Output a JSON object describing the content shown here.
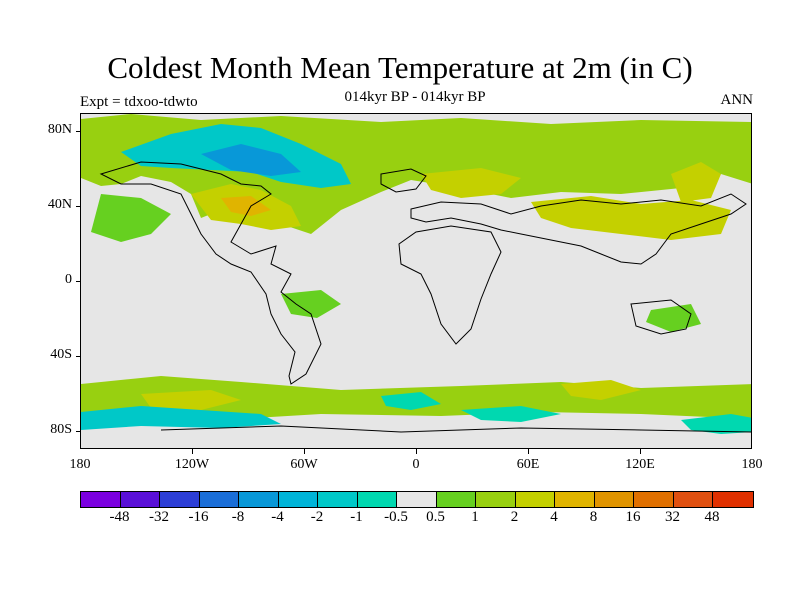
{
  "title": "Coldest Month Mean Temperature at 2m (in C)",
  "subtitle": "014kyr BP - 014kyr BP",
  "left_label": "Expt = tdxoo-tdwto",
  "right_label": "ANN",
  "y_ticks": [
    "80N",
    "40N",
    "0",
    "40S",
    "80S"
  ],
  "x_ticks": [
    "180",
    "120W",
    "60W",
    "0",
    "60E",
    "120E",
    "180"
  ],
  "colorbar": {
    "colors": [
      "#7b00e0",
      "#5a10d8",
      "#2c3ed6",
      "#1a6ed8",
      "#0898d8",
      "#00b4d8",
      "#00c8c8",
      "#00d8b0",
      "#e6e6e6",
      "#66d020",
      "#98d010",
      "#c4d000",
      "#e0b400",
      "#e09400",
      "#e07000",
      "#e05010",
      "#e03000"
    ],
    "labels": [
      "-48",
      "-32",
      "-16",
      "-8",
      "-4",
      "-2",
      "-1",
      "-0.5",
      "0.5",
      "1",
      "2",
      "4",
      "8",
      "16",
      "32",
      "48"
    ]
  }
}
